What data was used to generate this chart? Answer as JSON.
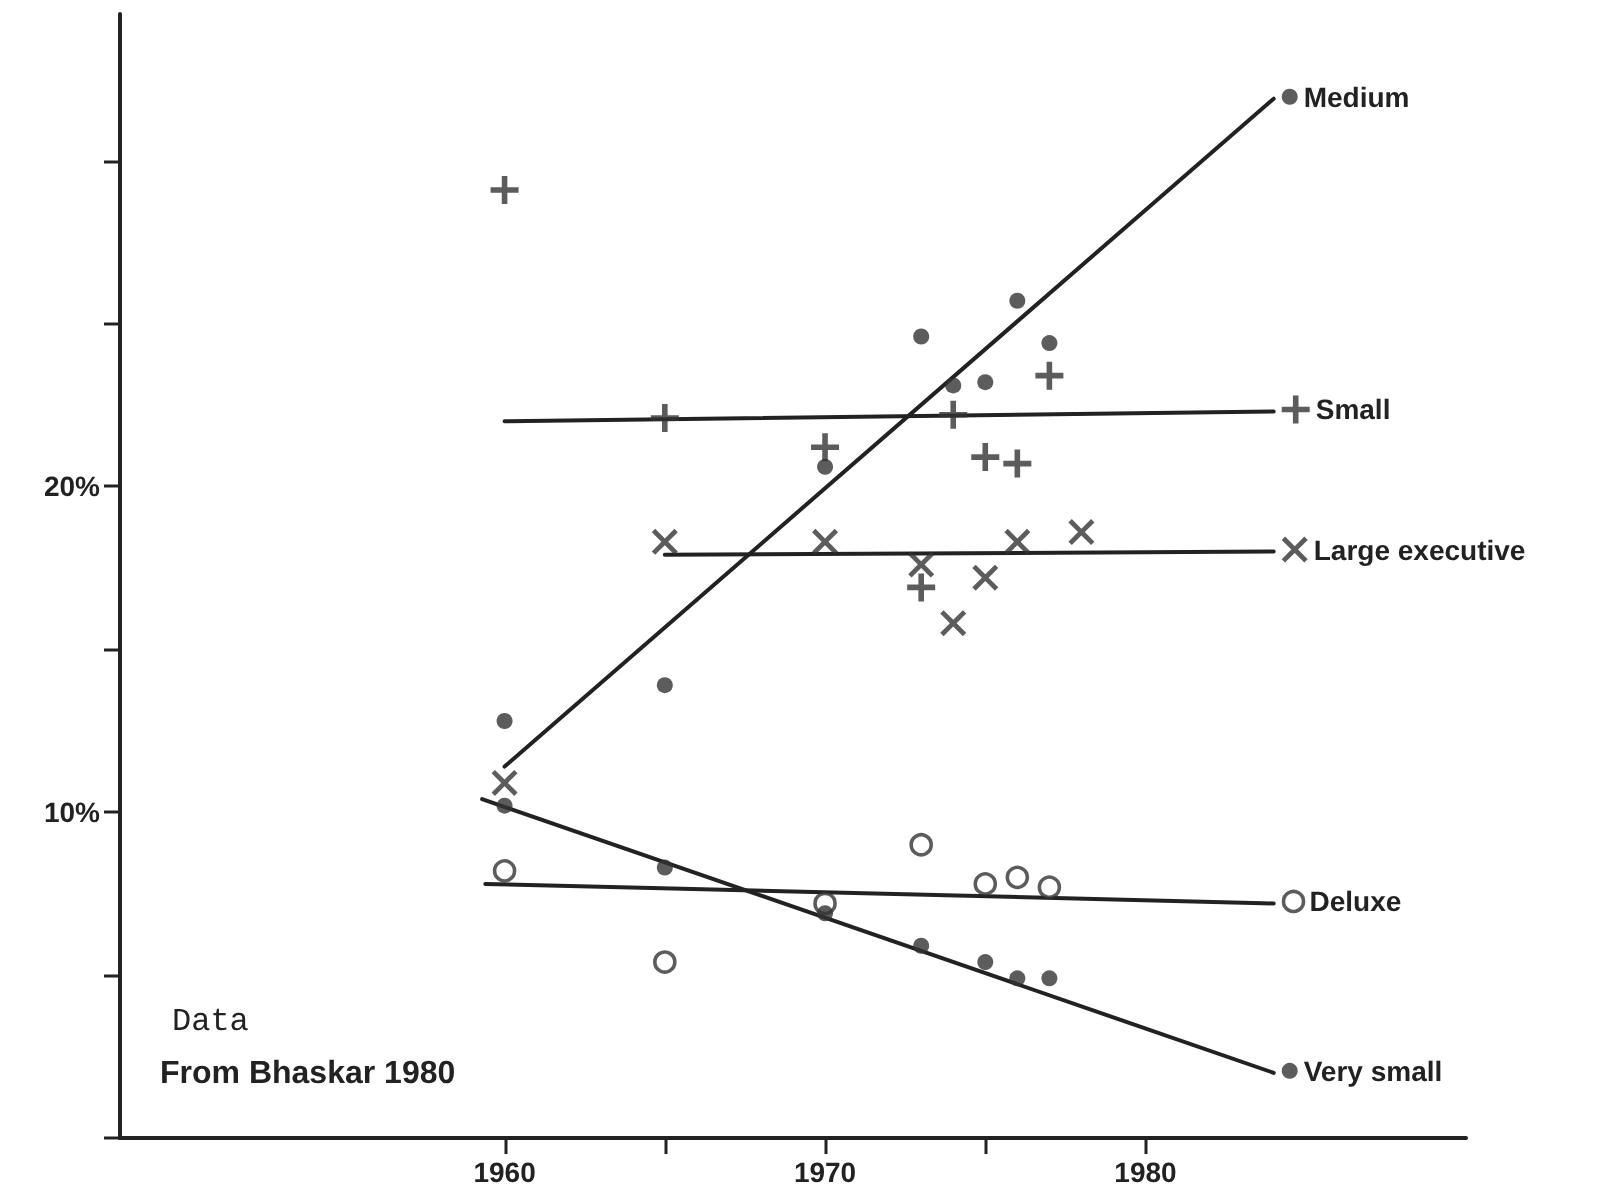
{
  "chart_data": {
    "type": "scatter",
    "xlim": [
      1948,
      1990
    ],
    "xticks": [
      1960,
      {
        "value": 1965,
        "label": null
      },
      1970,
      {
        "value": 1975,
        "label": null
      },
      1980
    ],
    "ylim": [
      0,
      34.5
    ],
    "yticks": [
      {
        "value": 0,
        "label": null
      },
      {
        "value": 5,
        "label": null
      },
      {
        "value": 10,
        "label": "10%"
      },
      {
        "value": 15,
        "label": null
      },
      {
        "value": 20,
        "label": "20%"
      },
      {
        "value": 25,
        "label": null
      },
      {
        "value": 30,
        "label": null
      }
    ],
    "grid": false,
    "legend": "right",
    "annotations": [
      "Data",
      "From Bhaskar 1980"
    ],
    "series": [
      {
        "name": "Medium",
        "color": "#333333",
        "marker": "circle",
        "x": [
          1960,
          1965,
          1970,
          1973,
          1974,
          1975,
          1976,
          1977
        ],
        "values": [
          12.8,
          13.9,
          20.6,
          24.6,
          23.1,
          23.2,
          25.7,
          24.4
        ]
      },
      {
        "type": "line",
        "color": "#222222",
        "line_style": "solid",
        "x": [
          1960,
          1984
        ],
        "values": [
          11.4,
          31.9
        ]
      },
      {
        "name": "Small",
        "color": "#333333",
        "marker": "plus",
        "x": [
          1960,
          1965,
          1970,
          1973,
          1974,
          1975,
          1976,
          1977
        ],
        "values": [
          29.1,
          22.1,
          21.2,
          16.9,
          22.2,
          20.9,
          20.7,
          23.4
        ]
      },
      {
        "type": "line",
        "color": "#222222",
        "line_style": "solid",
        "x": [
          1960,
          1984
        ],
        "values": [
          22.0,
          22.3
        ]
      },
      {
        "name": "Large executive",
        "color": "#333333",
        "marker": "x",
        "x": [
          1960,
          1965,
          1970,
          1973,
          1974,
          1975,
          1976,
          1978
        ],
        "values": [
          10.9,
          18.3,
          18.3,
          17.6,
          15.8,
          17.2,
          18.3,
          18.6
        ]
      },
      {
        "type": "line",
        "color": "#222222",
        "line_style": "solid",
        "x": [
          1965,
          1984
        ],
        "values": [
          17.9,
          18.0
        ]
      },
      {
        "name": "Deluxe",
        "color": "#333333",
        "marker": "circle_open",
        "x": [
          1960,
          1965,
          1970,
          1973,
          1975,
          1976,
          1977
        ],
        "values": [
          8.2,
          5.4,
          7.2,
          9.0,
          7.8,
          8.0,
          7.7
        ]
      },
      {
        "type": "line",
        "color": "#222222",
        "line_style": "solid",
        "x": [
          1959.4,
          1984
        ],
        "values": [
          7.8,
          7.2
        ]
      },
      {
        "name": "Very small",
        "color": "#333333",
        "marker": "circle",
        "x": [
          1960,
          1965,
          1970,
          1973,
          1975,
          1976,
          1977
        ],
        "values": [
          10.2,
          8.3,
          6.9,
          5.9,
          5.4,
          4.9,
          4.9
        ]
      },
      {
        "type": "line",
        "color": "#222222",
        "line_style": "solid",
        "x": [
          1959.3,
          1984
        ],
        "values": [
          10.4,
          2.0
        ]
      }
    ]
  }
}
